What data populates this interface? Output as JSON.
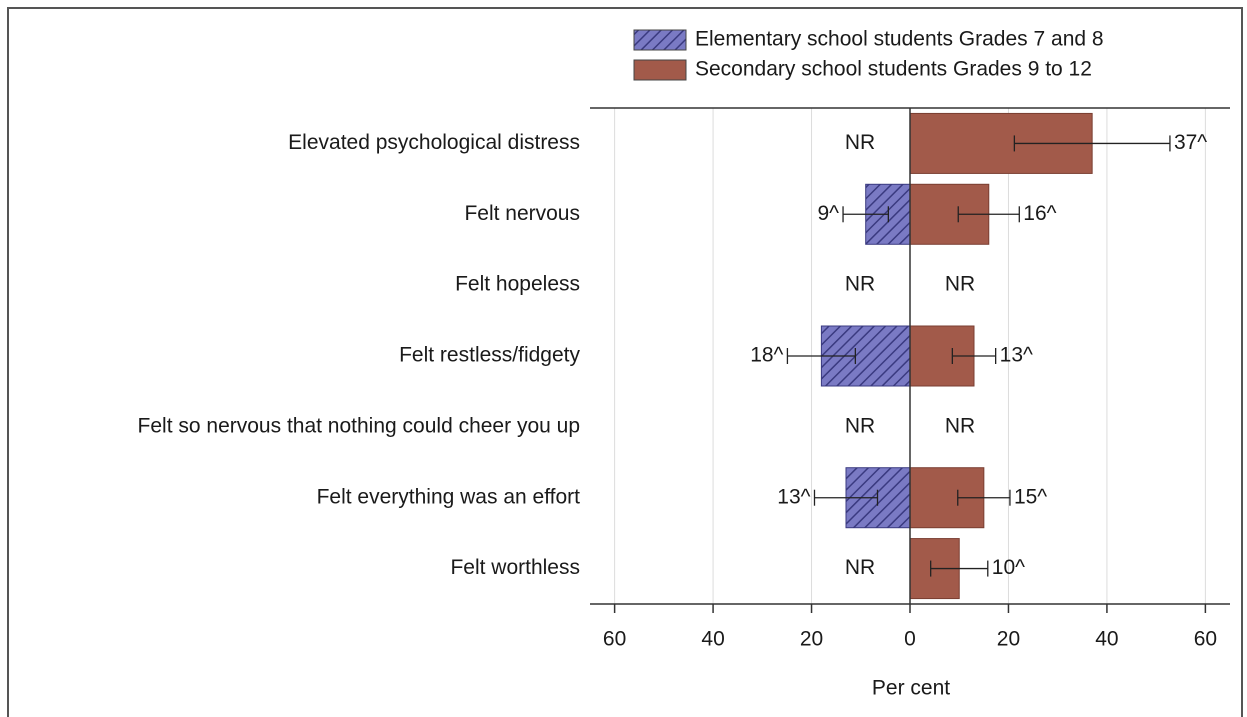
{
  "chart_data": {
    "type": "bar",
    "orientation": "horizontal",
    "categories": [
      "Elevated psychological distress",
      "Felt nervous",
      "Felt hopeless",
      "Felt restless/fidgety",
      "Felt so nervous that nothing could cheer you up",
      "Felt everything was an effort",
      "Felt worthless"
    ],
    "series": [
      {
        "name": "Elementary school students Grades 7 and 8",
        "color": "#6464b4",
        "hatch": true,
        "values": [
          null,
          -9,
          null,
          -18,
          null,
          -13,
          null
        ],
        "errors": [
          null,
          4.6,
          null,
          6.9,
          null,
          6.4,
          null
        ],
        "value_labels": [
          "NR",
          "9^",
          "NR",
          "18^",
          "NR",
          "13^",
          "NR"
        ]
      },
      {
        "name": "Secondary school students Grades 9 to 12",
        "color": "#a25a4a",
        "hatch": false,
        "values": [
          37,
          16,
          null,
          13,
          null,
          15,
          10
        ],
        "errors": [
          15.8,
          6.2,
          null,
          4.4,
          null,
          5.3,
          5.8
        ],
        "value_labels": [
          "37^",
          "16^",
          "NR",
          "13^",
          "NR",
          "15^",
          "10^"
        ]
      }
    ],
    "xlabel": "Per cent",
    "xlim": [
      -65,
      65
    ],
    "xticks": [
      {
        "value": -60,
        "label": "60"
      },
      {
        "value": -40,
        "label": "40"
      },
      {
        "value": -20,
        "label": "20"
      },
      0,
      20,
      40,
      60
    ],
    "grid": true,
    "legend": "top-right"
  }
}
